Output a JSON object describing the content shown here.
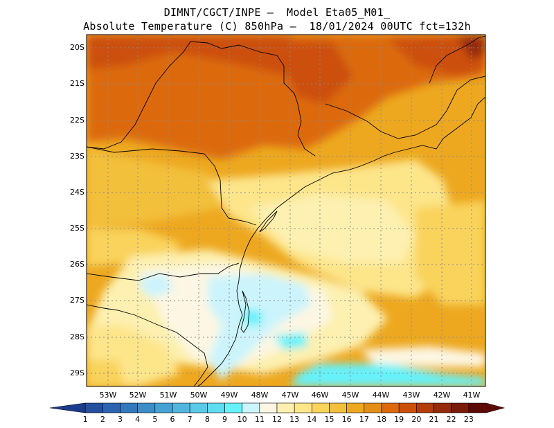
{
  "title": {
    "line1": "DIMNT/CGCT/INPE –  Model Eta05_M01_",
    "line2": "Absolute Temperature (C) 850hPa –  18/01/2024 00UTC fct=132h"
  },
  "map": {
    "lat_labels": [
      "20S",
      "21S",
      "22S",
      "23S",
      "24S",
      "25S",
      "26S",
      "27S",
      "28S",
      "29S"
    ],
    "lon_labels": [
      "53W",
      "52W",
      "51W",
      "50W",
      "49W",
      "48W",
      "47W",
      "46W",
      "45W",
      "44W",
      "43W",
      "42W",
      "41W"
    ]
  },
  "colorbar": {
    "labels": [
      "1",
      "2",
      "3",
      "4",
      "5",
      "6",
      "7",
      "8",
      "9",
      "10",
      "11",
      "12",
      "13",
      "14",
      "15",
      "16",
      "17",
      "18",
      "19",
      "20",
      "21",
      "22",
      "23"
    ],
    "colors": [
      "#1b3c8c",
      "#23509e",
      "#2b64b0",
      "#3278bc",
      "#3c8cc8",
      "#46a2d4",
      "#50b6de",
      "#5acae8",
      "#5edcf0",
      "#66f2fa",
      "#ccf4fc",
      "#fdf6e2",
      "#fdf0b0",
      "#fde58a",
      "#f9d35c",
      "#f3c03a",
      "#eda820",
      "#e58e16",
      "#dc6a0c",
      "#cc500a",
      "#b23c0a",
      "#962a0a",
      "#7a1a08",
      "#5c0a06"
    ]
  }
}
